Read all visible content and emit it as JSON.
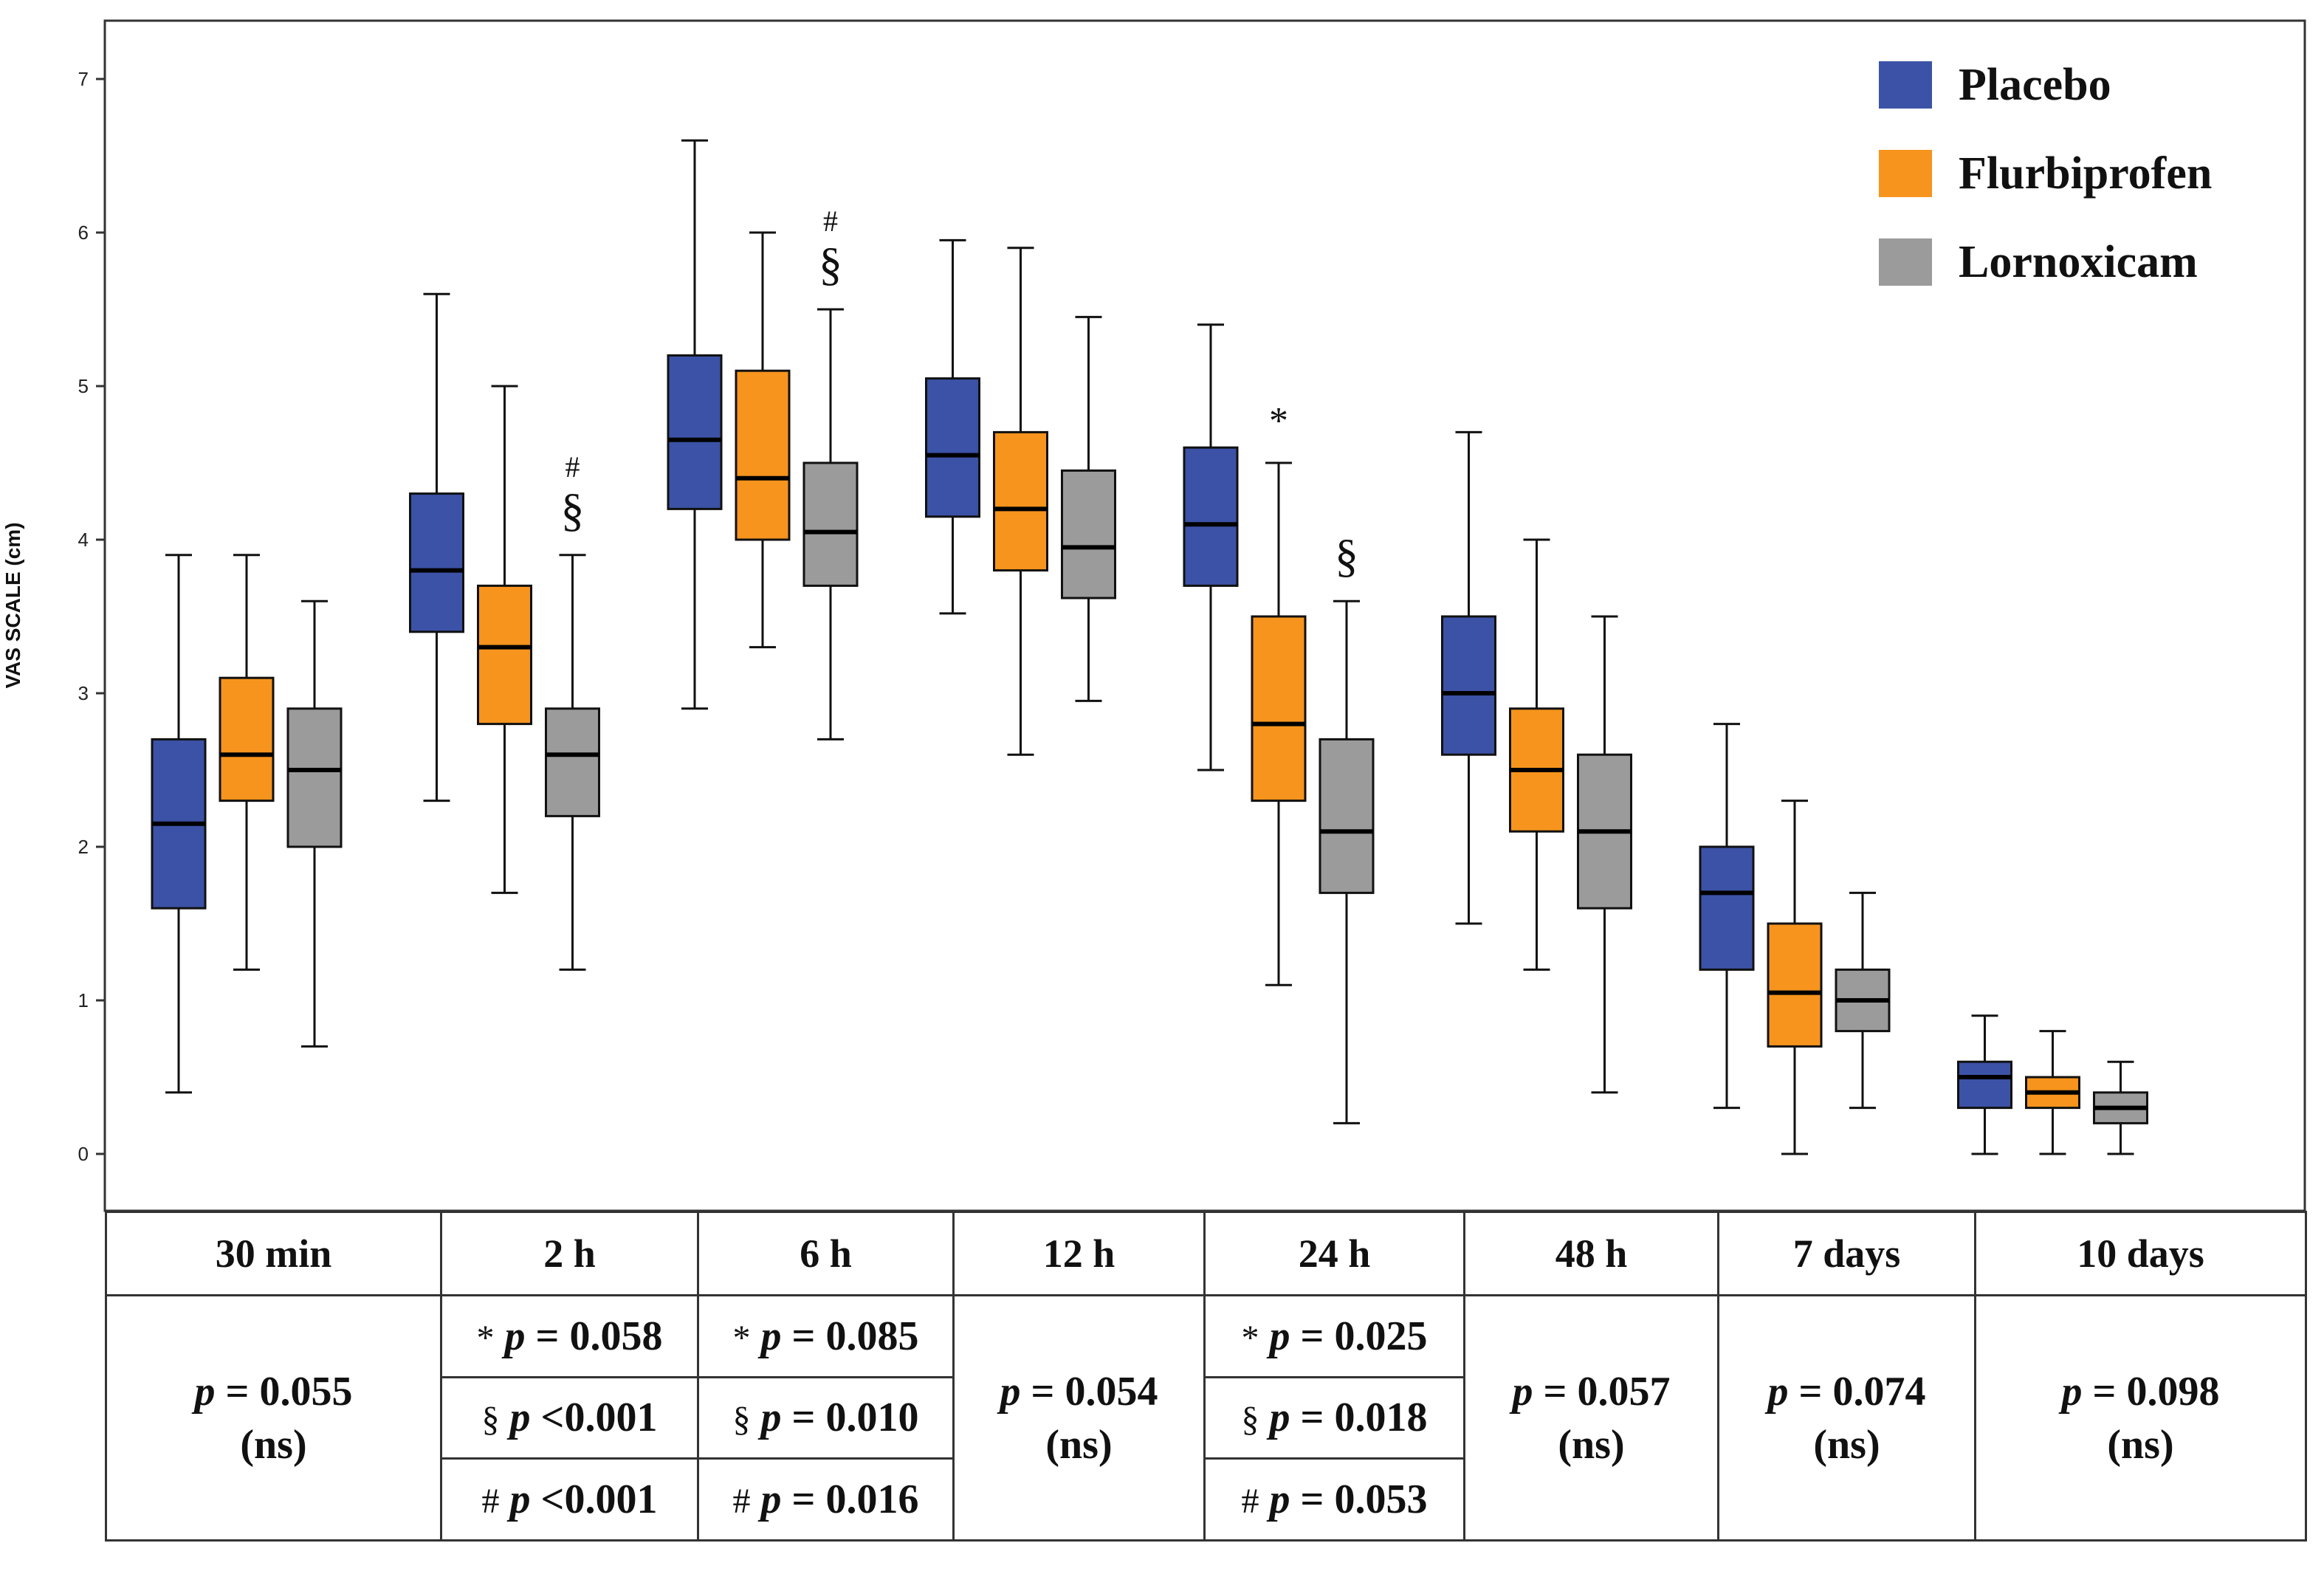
{
  "chart_data": {
    "type": "box",
    "ylabel": "VAS SCALE (cm)",
    "ylim": [
      -0.35,
      7.4
    ],
    "yticks": [
      0,
      1,
      2,
      3,
      4,
      5,
      6,
      7
    ],
    "legend_position": "top-right",
    "series": [
      {
        "name": "Placebo",
        "color": "#3b52a6"
      },
      {
        "name": "Flurbiprofen",
        "color": "#f7941d"
      },
      {
        "name": "Lornoxicam",
        "color": "#9b9b9b"
      }
    ],
    "groups": [
      {
        "label": "30 min",
        "boxes": [
          {
            "series": "Placebo",
            "min": 0.4,
            "q1": 1.6,
            "median": 2.15,
            "q3": 2.7,
            "max": 3.9
          },
          {
            "series": "Flurbiprofen",
            "min": 1.2,
            "q1": 2.3,
            "median": 2.6,
            "q3": 3.1,
            "max": 3.9
          },
          {
            "series": "Lornoxicam",
            "min": 0.7,
            "q1": 2.0,
            "median": 2.5,
            "q3": 2.9,
            "max": 3.6
          }
        ],
        "annotations": []
      },
      {
        "label": "2 h",
        "boxes": [
          {
            "series": "Placebo",
            "min": 2.3,
            "q1": 3.4,
            "median": 3.8,
            "q3": 4.3,
            "max": 5.6
          },
          {
            "series": "Flurbiprofen",
            "min": 1.7,
            "q1": 2.8,
            "median": 3.3,
            "q3": 3.7,
            "max": 5.0
          },
          {
            "series": "Lornoxicam",
            "min": 1.2,
            "q1": 2.2,
            "median": 2.6,
            "q3": 2.9,
            "max": 3.9
          }
        ],
        "annotations": [
          {
            "series": "Lornoxicam",
            "symbols": [
              "§",
              "#"
            ]
          }
        ]
      },
      {
        "label": "6 h",
        "boxes": [
          {
            "series": "Placebo",
            "min": 2.9,
            "q1": 4.2,
            "median": 4.65,
            "q3": 5.2,
            "max": 6.6
          },
          {
            "series": "Flurbiprofen",
            "min": 3.3,
            "q1": 4.0,
            "median": 4.4,
            "q3": 5.1,
            "max": 6.0
          },
          {
            "series": "Lornoxicam",
            "min": 2.7,
            "q1": 3.7,
            "median": 4.05,
            "q3": 4.5,
            "max": 5.5
          }
        ],
        "annotations": [
          {
            "series": "Lornoxicam",
            "symbols": [
              "§",
              "#"
            ]
          }
        ]
      },
      {
        "label": "12 h",
        "boxes": [
          {
            "series": "Placebo",
            "min": 3.52,
            "q1": 4.15,
            "median": 4.55,
            "q3": 5.05,
            "max": 5.95
          },
          {
            "series": "Flurbiprofen",
            "min": 2.6,
            "q1": 3.8,
            "median": 4.2,
            "q3": 4.7,
            "max": 5.9
          },
          {
            "series": "Lornoxicam",
            "min": 2.95,
            "q1": 3.62,
            "median": 3.95,
            "q3": 4.45,
            "max": 5.45
          }
        ],
        "annotations": []
      },
      {
        "label": "24 h",
        "boxes": [
          {
            "series": "Placebo",
            "min": 2.5,
            "q1": 3.7,
            "median": 4.1,
            "q3": 4.6,
            "max": 5.4
          },
          {
            "series": "Flurbiprofen",
            "min": 1.1,
            "q1": 2.3,
            "median": 2.8,
            "q3": 3.5,
            "max": 4.5
          },
          {
            "series": "Lornoxicam",
            "min": 0.2,
            "q1": 1.7,
            "median": 2.1,
            "q3": 2.7,
            "max": 3.6
          }
        ],
        "annotations": [
          {
            "series": "Flurbiprofen",
            "symbols": [
              "*"
            ]
          },
          {
            "series": "Lornoxicam",
            "symbols": [
              "§"
            ]
          }
        ]
      },
      {
        "label": "48 h",
        "boxes": [
          {
            "series": "Placebo",
            "min": 1.5,
            "q1": 2.6,
            "median": 3.0,
            "q3": 3.5,
            "max": 4.7
          },
          {
            "series": "Flurbiprofen",
            "min": 1.2,
            "q1": 2.1,
            "median": 2.5,
            "q3": 2.9,
            "max": 4.0
          },
          {
            "series": "Lornoxicam",
            "min": 0.4,
            "q1": 1.6,
            "median": 2.1,
            "q3": 2.6,
            "max": 3.5
          }
        ],
        "annotations": []
      },
      {
        "label": "7 days",
        "boxes": [
          {
            "series": "Placebo",
            "min": 0.3,
            "q1": 1.2,
            "median": 1.7,
            "q3": 2.0,
            "max": 2.8
          },
          {
            "series": "Flurbiprofen",
            "min": 0.0,
            "q1": 0.7,
            "median": 1.05,
            "q3": 1.5,
            "max": 2.3
          },
          {
            "series": "Lornoxicam",
            "min": 0.3,
            "q1": 0.8,
            "median": 1.0,
            "q3": 1.2,
            "max": 1.7
          }
        ],
        "annotations": []
      },
      {
        "label": "10 days",
        "boxes": [
          {
            "series": "Placebo",
            "min": 0.0,
            "q1": 0.3,
            "median": 0.5,
            "q3": 0.6,
            "max": 0.9
          },
          {
            "series": "Flurbiprofen",
            "min": 0.0,
            "q1": 0.3,
            "median": 0.4,
            "q3": 0.5,
            "max": 0.8
          },
          {
            "series": "Lornoxicam",
            "min": 0.0,
            "q1": 0.2,
            "median": 0.3,
            "q3": 0.4,
            "max": 0.6
          }
        ],
        "annotations": []
      }
    ]
  },
  "table": {
    "headers": [
      "30 min",
      "2 h",
      "6 h",
      "12 h",
      "24 h",
      "48 h",
      "7 days",
      "10 days"
    ],
    "p_label": "p",
    "ns_label": "(ns)",
    "t30": {
      "p": "= 0.055",
      "ns": "(ns)"
    },
    "t2h": [
      {
        "sym": "*",
        "p": "= 0.058"
      },
      {
        "sym": "§",
        "p": "<0.001"
      },
      {
        "sym": "#",
        "p": "<0.001"
      }
    ],
    "t6h": [
      {
        "sym": "*",
        "p": "= 0.085"
      },
      {
        "sym": "§",
        "p": "= 0.010"
      },
      {
        "sym": "#",
        "p": "= 0.016"
      }
    ],
    "t12h": {
      "p": "= 0.054",
      "ns": "(ns)"
    },
    "t24h": [
      {
        "sym": "*",
        "p": "= 0.025"
      },
      {
        "sym": "§",
        "p": "= 0.018"
      },
      {
        "sym": "#",
        "p": "= 0.053"
      }
    ],
    "t48h": {
      "p": "= 0.057",
      "ns": "(ns)"
    },
    "t7d": {
      "p": "= 0.074",
      "ns": "(ns)"
    },
    "t10d": {
      "p": "= 0.098",
      "ns": "(ns)"
    }
  }
}
